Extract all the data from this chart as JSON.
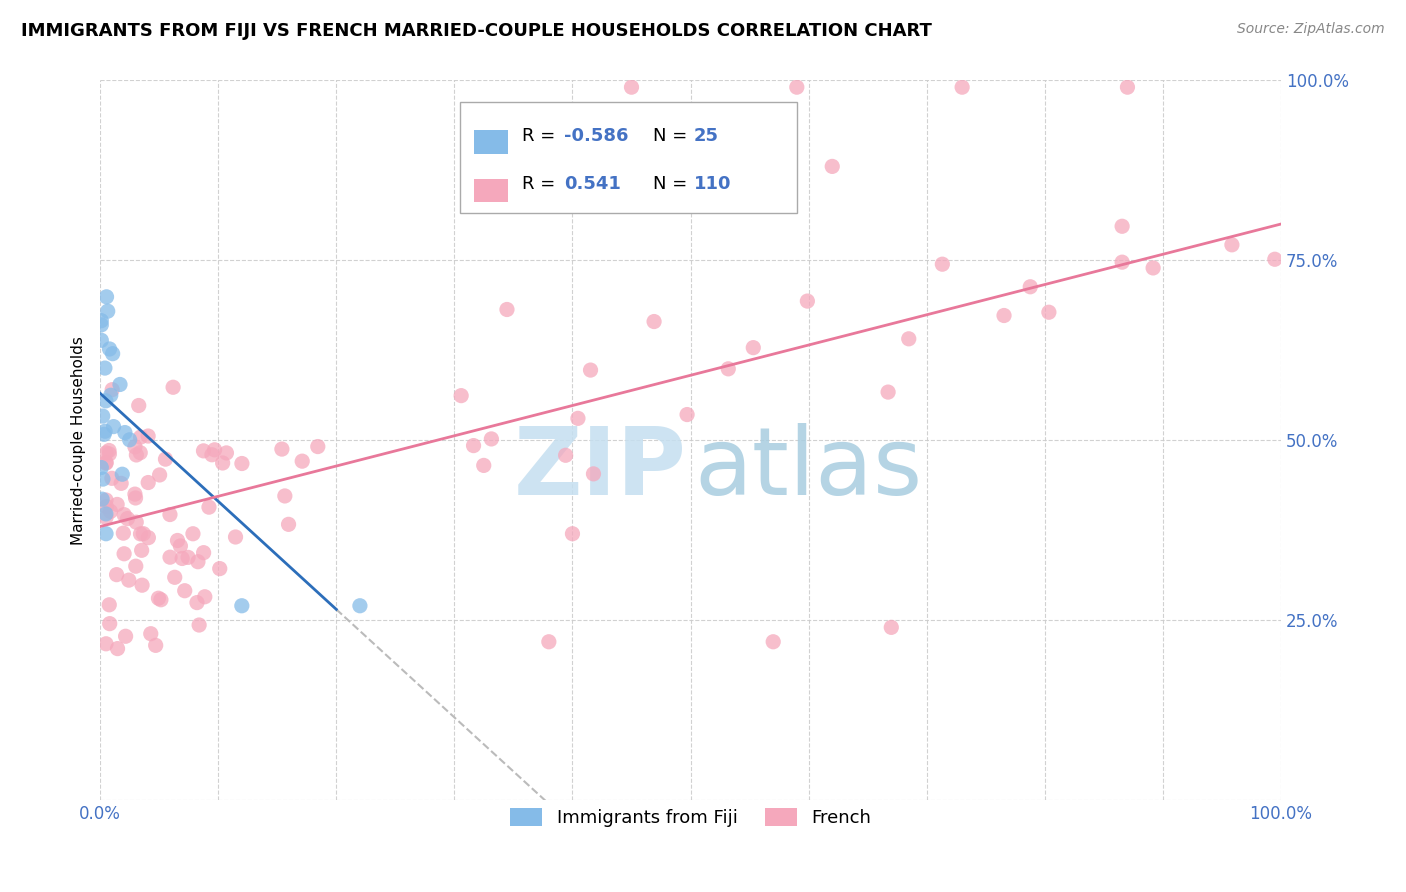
{
  "title": "IMMIGRANTS FROM FIJI VS FRENCH MARRIED-COUPLE HOUSEHOLDS CORRELATION CHART",
  "source": "Source: ZipAtlas.com",
  "ylabel": "Married-couple Households",
  "fiji_R": -0.586,
  "fiji_N": 25,
  "french_R": 0.541,
  "french_N": 110,
  "fiji_color": "#85BBE8",
  "french_color": "#F5A8BC",
  "fiji_line_color": "#2C6EBA",
  "french_line_color": "#E8789A",
  "fiji_dash_color": "#BBBBBB",
  "grid_color": "#CCCCCC",
  "title_fontsize": 13,
  "tick_fontsize": 12,
  "legend_fontsize": 13,
  "marker_size": 120,
  "fiji_slope": -1.5,
  "fiji_intercept": 0.565,
  "french_slope": 0.42,
  "french_intercept": 0.38
}
